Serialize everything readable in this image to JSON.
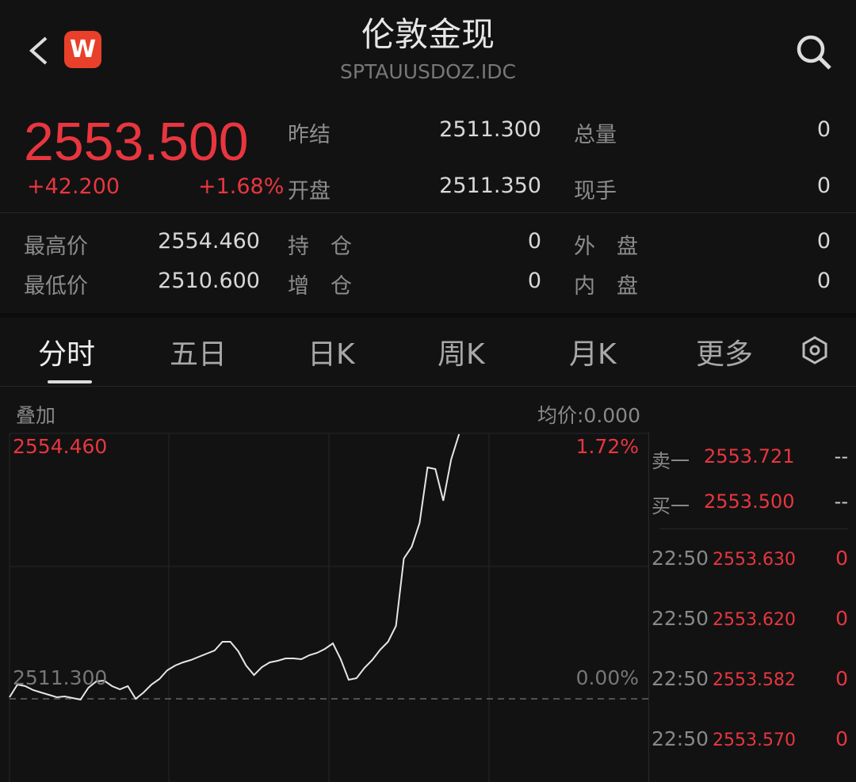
{
  "header": {
    "title": "伦敦金现",
    "code": "SPTAUUSDOZ.IDC",
    "logo_letter": "W",
    "back_icon": "chevron-left",
    "search_icon": "search"
  },
  "quote": {
    "price": "2553.500",
    "change": "+42.200",
    "change_pct": "+1.68%"
  },
  "stats": [
    {
      "label": "昨结",
      "value": "2511.300"
    },
    {
      "label": "总量",
      "value": "0"
    },
    {
      "label": "开盘",
      "value": "2511.350"
    },
    {
      "label": "现手",
      "value": "0"
    },
    {
      "label": "最高价",
      "value": "2554.460"
    },
    {
      "label": "持　仓",
      "value": "0"
    },
    {
      "label": "外　盘",
      "value": "0"
    },
    {
      "label": "最低价",
      "value": "2510.600"
    },
    {
      "label": "增　仓",
      "value": "0"
    },
    {
      "label": "内　盘",
      "value": "0"
    }
  ],
  "tabs": [
    {
      "label": "分时",
      "active": true
    },
    {
      "label": "五日"
    },
    {
      "label": "日K"
    },
    {
      "label": "周K"
    },
    {
      "label": "月K"
    },
    {
      "label": "更多"
    }
  ],
  "chart_header": {
    "overlay": "叠加",
    "avg_price": "均价:0.000"
  },
  "chart_data": {
    "type": "line",
    "top_label": "2554.460",
    "top_pct": "1.72%",
    "base_label": "2511.300",
    "base_pct": "0.00%",
    "ylim": [
      2511.3,
      2554.46
    ],
    "grid": true,
    "series": [
      {
        "values": [
          2511.56,
          2513.62,
          2513.36,
          2512.72,
          2512.33,
          2511.94,
          2511.56,
          2511.69,
          2511.43,
          2511.17,
          2513.1,
          2514.13,
          2514.26,
          2513.36,
          2512.85,
          2513.36,
          2511.3,
          2512.33,
          2513.62,
          2514.52,
          2515.94,
          2516.71,
          2517.23,
          2517.61,
          2518.13,
          2518.64,
          2519.16,
          2520.58,
          2520.58,
          2519.03,
          2516.71,
          2515.17,
          2516.45,
          2517.23,
          2517.48,
          2517.87,
          2517.87,
          2517.74,
          2518.39,
          2518.77,
          2519.42,
          2520.32,
          2517.74,
          2514.39,
          2514.65,
          2516.32,
          2517.61,
          2519.29,
          2520.58,
          2523.15,
          2534.1,
          2536.04,
          2539.9,
          2548.92,
          2548.66,
          2543.51,
          2550.21,
          2554.34
        ],
        "color": "#e6e6e6"
      }
    ]
  },
  "order_book": [
    {
      "label": "卖一",
      "price": "2553.721",
      "vol": "--"
    },
    {
      "label": "买一",
      "price": "2553.500",
      "vol": "--"
    }
  ],
  "ticks": [
    {
      "time": "22:50",
      "price": "2553.630",
      "vol": "0"
    },
    {
      "time": "22:50",
      "price": "2553.620",
      "vol": "0"
    },
    {
      "time": "22:50",
      "price": "2553.582",
      "vol": "0"
    },
    {
      "time": "22:50",
      "price": "2553.570",
      "vol": "0"
    }
  ],
  "colors": {
    "up": "#e8363e",
    "bg": "#121213",
    "logo": "#e8402a"
  }
}
